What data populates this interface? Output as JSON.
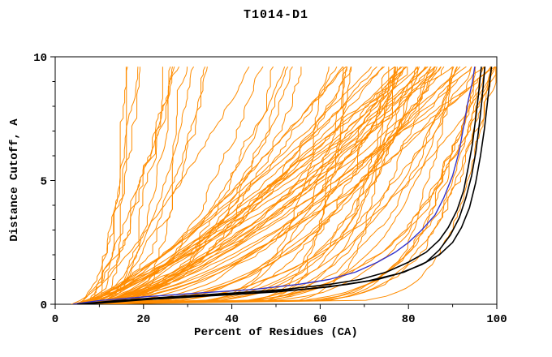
{
  "chart_data": {
    "type": "line",
    "title": "T1014-D1",
    "xlabel": "Percent of Residues (CA)",
    "ylabel": "Distance Cutoff, A",
    "xlim": [
      0,
      100
    ],
    "ylim": [
      0,
      10
    ],
    "x_ticks": [
      0,
      20,
      40,
      60,
      80,
      100
    ],
    "x_minor_ticks": [
      10,
      30,
      50,
      70,
      90
    ],
    "y_ticks": [
      0,
      5,
      10
    ],
    "y_minor_ticks": [
      1,
      2,
      3,
      4,
      6,
      7,
      8,
      9
    ],
    "grid": false,
    "legend": "none",
    "axis_color": "#000000",
    "background": "#ffffff",
    "model_curves": {
      "description": "ensemble of predicted model GDT curves",
      "color": "#ff8c00",
      "count": 85,
      "seed": 20240117,
      "y_max": 9.6,
      "x_start_range": [
        3.5,
        9
      ],
      "x_top_mixture": {
        "low_prob": 0.12,
        "low_range": [
          12,
          35
        ],
        "high_range": [
          35,
          100
        ],
        "high_bias": 0.5
      },
      "shape_exp_base": 0.08,
      "shape_exp_spread": 0.72,
      "wiggle_range": [
        0.8,
        3.2
      ]
    },
    "reference_curve": {
      "name": "reference-model",
      "color": "#3333cc",
      "points": [
        [
          4,
          0
        ],
        [
          10,
          0.15
        ],
        [
          20,
          0.3
        ],
        [
          32,
          0.45
        ],
        [
          45,
          0.6
        ],
        [
          55,
          0.8
        ],
        [
          62,
          1.0
        ],
        [
          68,
          1.3
        ],
        [
          73,
          1.7
        ],
        [
          77,
          2.1
        ],
        [
          80,
          2.5
        ],
        [
          83,
          3.0
        ],
        [
          86,
          3.6
        ],
        [
          88,
          4.3
        ],
        [
          90,
          5.2
        ],
        [
          91.5,
          6.2
        ],
        [
          92.5,
          7.2
        ],
        [
          93.5,
          8.2
        ],
        [
          94.5,
          9.0
        ],
        [
          95,
          9.6
        ]
      ]
    },
    "highlight_curves": [
      {
        "name": "best-model-1",
        "color": "#000000",
        "points": [
          [
            5,
            0
          ],
          [
            14,
            0.15
          ],
          [
            26,
            0.3
          ],
          [
            40,
            0.45
          ],
          [
            52,
            0.6
          ],
          [
            62,
            0.8
          ],
          [
            69,
            1.0
          ],
          [
            75,
            1.3
          ],
          [
            80,
            1.7
          ],
          [
            84,
            2.1
          ],
          [
            87,
            2.6
          ],
          [
            89,
            3.1
          ],
          [
            91,
            3.8
          ],
          [
            92.5,
            4.6
          ],
          [
            93.5,
            5.5
          ],
          [
            94.5,
            6.5
          ],
          [
            95.2,
            7.5
          ],
          [
            95.8,
            8.4
          ],
          [
            96.2,
            9.1
          ],
          [
            96.5,
            9.6
          ]
        ]
      },
      {
        "name": "best-model-2",
        "color": "#000000",
        "points": [
          [
            6,
            0
          ],
          [
            16,
            0.15
          ],
          [
            30,
            0.3
          ],
          [
            44,
            0.45
          ],
          [
            56,
            0.6
          ],
          [
            66,
            0.8
          ],
          [
            73,
            1.0
          ],
          [
            79,
            1.3
          ],
          [
            84,
            1.7
          ],
          [
            87,
            2.2
          ],
          [
            89.5,
            2.8
          ],
          [
            91.5,
            3.5
          ],
          [
            93,
            4.3
          ],
          [
            94.3,
            5.2
          ],
          [
            95.3,
            6.2
          ],
          [
            96,
            7.2
          ],
          [
            96.6,
            8.2
          ],
          [
            97,
            9.0
          ],
          [
            97.3,
            9.6
          ]
        ]
      },
      {
        "name": "best-model-3",
        "color": "#000000",
        "points": [
          [
            7,
            0
          ],
          [
            20,
            0.18
          ],
          [
            36,
            0.35
          ],
          [
            50,
            0.5
          ],
          [
            62,
            0.7
          ],
          [
            71,
            0.95
          ],
          [
            78,
            1.25
          ],
          [
            83,
            1.6
          ],
          [
            87,
            2.0
          ],
          [
            90,
            2.5
          ],
          [
            92,
            3.1
          ],
          [
            93.8,
            3.9
          ],
          [
            95.2,
            4.9
          ],
          [
            96.3,
            6.0
          ],
          [
            97.2,
            7.1
          ],
          [
            97.9,
            8.2
          ],
          [
            98.4,
            9.0
          ],
          [
            98.8,
            9.6
          ]
        ]
      }
    ]
  }
}
